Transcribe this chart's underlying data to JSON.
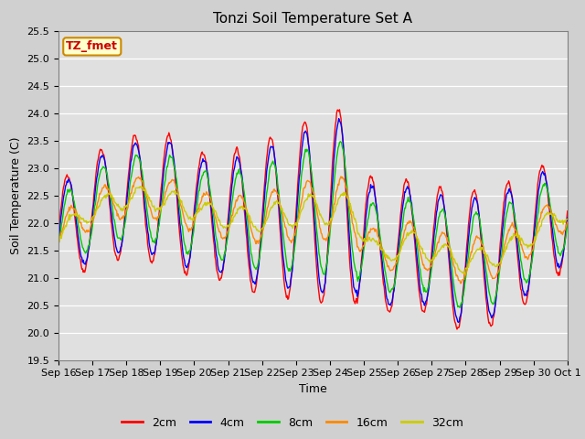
{
  "title": "Tonzi Soil Temperature Set A",
  "xlabel": "Time",
  "ylabel": "Soil Temperature (C)",
  "ylim": [
    19.5,
    25.5
  ],
  "yticks": [
    19.5,
    20.0,
    20.5,
    21.0,
    21.5,
    22.0,
    22.5,
    23.0,
    23.5,
    24.0,
    24.5,
    25.0,
    25.5
  ],
  "x_tick_labels": [
    "Sep 16",
    "Sep 17",
    "Sep 18",
    "Sep 19",
    "Sep 20",
    "Sep 21",
    "Sep 22",
    "Sep 23",
    "Sep 24",
    "Sep 25",
    "Sep 26",
    "Sep 27",
    "Sep 28",
    "Sep 29",
    "Sep 30",
    "Oct 1"
  ],
  "colors": {
    "2cm": "#ff0000",
    "4cm": "#0000ff",
    "8cm": "#00cc00",
    "16cm": "#ff8800",
    "32cm": "#cccc00"
  },
  "annotation_text": "TZ_fmet",
  "annotation_color": "#cc0000",
  "annotation_bg": "#ffffcc",
  "annotation_border": "#cc8800",
  "fig_bg": "#d0d0d0",
  "plot_bg": "#e0e0e0",
  "title_fontsize": 11,
  "axis_fontsize": 9,
  "tick_fontsize": 8,
  "legend_fontsize": 9
}
